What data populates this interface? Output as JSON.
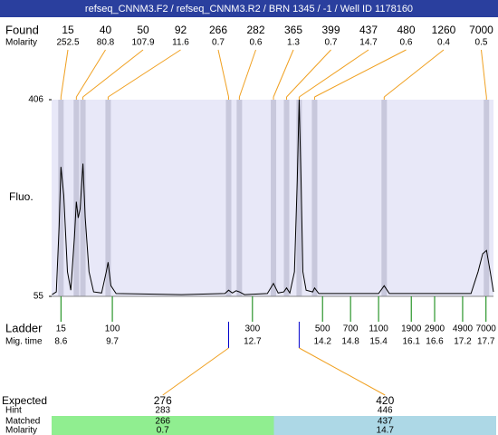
{
  "title": "refseq_CNNM3.F2 / refseq_CNNM3.R2 / BRN 1345 / -1 / Well ID 1178160",
  "chart_data": {
    "type": "line",
    "ylabel": "Fluo.",
    "ylim": [
      55,
      406
    ],
    "yticks": [
      55,
      406
    ],
    "xlim": [
      8.4,
      17.86
    ],
    "x": [
      8.41,
      8.5,
      8.56,
      8.6,
      8.66,
      8.74,
      8.81,
      8.89,
      8.93,
      8.97,
      9.01,
      9.07,
      9.12,
      9.2,
      9.3,
      9.47,
      9.57,
      9.61,
      9.67,
      9.78,
      11.18,
      12.11,
      12.19,
      12.27,
      12.35,
      12.42,
      12.53,
      13.02,
      13.15,
      13.25,
      13.37,
      13.43,
      13.5,
      13.6,
      13.66,
      13.7,
      13.74,
      13.78,
      13.85,
      13.99,
      14.03,
      14.12,
      15.4,
      15.52,
      15.63,
      17.38,
      17.53,
      17.63,
      17.71,
      17.79,
      17.86
    ],
    "series": [
      {
        "color": "#000000",
        "values": [
          58,
          63,
          180,
          286,
          236,
          99,
          66,
          163,
          224,
          195,
          211,
          292,
          196,
          99,
          63,
          61,
          99,
          116,
          74,
          60,
          58,
          60,
          66,
          61,
          65,
          63,
          58,
          60,
          78,
          61,
          63,
          70,
          61,
          99,
          261,
          406,
          261,
          99,
          66,
          63,
          70,
          60,
          60,
          74,
          60,
          60,
          99,
          131,
          137,
          99,
          63
        ]
      }
    ],
    "peaks": {
      "label": "Found",
      "molarity_label": "Molarity",
      "band_color": "#c8c8dc",
      "line_color": "#f0a020",
      "items": [
        {
          "size": 15,
          "molarity": 252.5,
          "time": 8.6
        },
        {
          "size": 40,
          "molarity": 80.8,
          "time": 8.93
        },
        {
          "size": 50,
          "molarity": 107.9,
          "time": 9.07
        },
        {
          "size": 92,
          "molarity": 11.6,
          "time": 9.61
        },
        {
          "size": 266,
          "molarity": 0.7,
          "time": 12.19
        },
        {
          "size": 282,
          "molarity": 0.6,
          "time": 12.42
        },
        {
          "size": 365,
          "molarity": 1.3,
          "time": 13.15
        },
        {
          "size": 399,
          "molarity": 0.7,
          "time": 13.43
        },
        {
          "size": 437,
          "molarity": 14.7,
          "time": 13.7
        },
        {
          "size": 480,
          "molarity": 0.6,
          "time": 14.03
        },
        {
          "size": 1260,
          "molarity": 0.4,
          "time": 15.52
        },
        {
          "size": 7000,
          "molarity": 0.5,
          "time": 17.71
        }
      ]
    },
    "ladder": {
      "label": "Ladder",
      "time_label": "Mig. time",
      "color": "#008000",
      "items": [
        {
          "size": 15,
          "time": 8.6
        },
        {
          "size": 100,
          "time": 9.7
        },
        {
          "size": 300,
          "time": 12.7
        },
        {
          "size": 500,
          "time": 14.2
        },
        {
          "size": 700,
          "time": 14.8
        },
        {
          "size": 1100,
          "time": 15.4
        },
        {
          "size": 1900,
          "time": 16.1
        },
        {
          "size": 2900,
          "time": 16.6
        },
        {
          "size": 4900,
          "time": 17.2
        },
        {
          "size": 7000,
          "time": 17.7
        }
      ]
    }
  },
  "expected": {
    "labels": [
      "Expected",
      "Hint",
      "Matched",
      "Molarity"
    ],
    "columns": [
      {
        "expected": 276,
        "hint": 283,
        "matched": 266,
        "molarity": 0.7,
        "color": "#90ee90"
      },
      {
        "expected": 420,
        "hint": 446,
        "matched": 437,
        "molarity": 14.7,
        "color": "#add8e6"
      }
    ]
  }
}
